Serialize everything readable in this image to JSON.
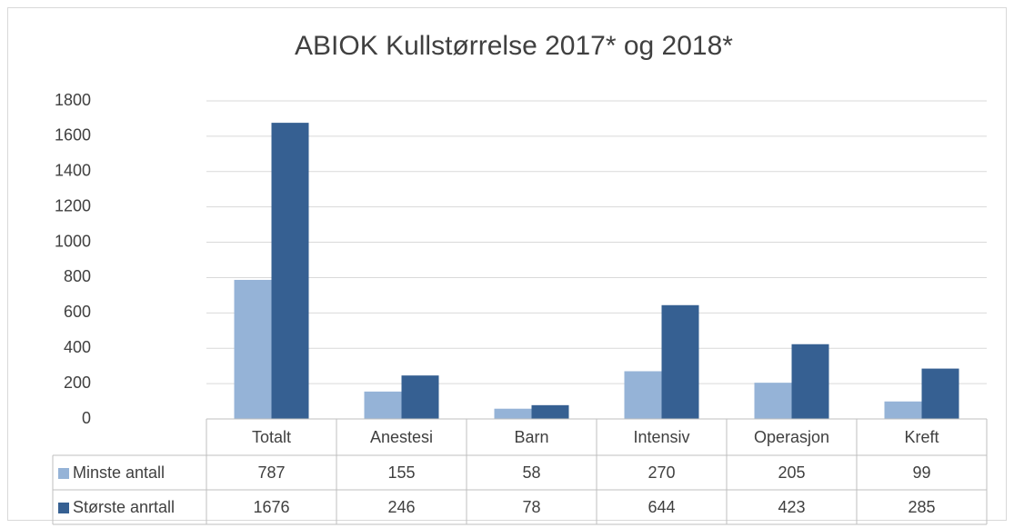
{
  "chart_data": {
    "type": "bar",
    "title": "ABIOK Kullstørrelse 2017* og 2018*",
    "categories": [
      "Totalt",
      "Anestesi",
      "Barn",
      "Intensiv",
      "Operasjon",
      "Kreft"
    ],
    "series": [
      {
        "name": "Minste antall",
        "color": "#95b3d7",
        "values": [
          787,
          155,
          58,
          270,
          205,
          99
        ]
      },
      {
        "name": "Største anrtall",
        "color": "#366092",
        "values": [
          1676,
          246,
          78,
          644,
          423,
          285
        ]
      }
    ],
    "ylim": [
      0,
      1800
    ],
    "yticks": [
      0,
      200,
      400,
      600,
      800,
      1000,
      1200,
      1400,
      1600,
      1800
    ],
    "grid": true,
    "data_table": true
  }
}
